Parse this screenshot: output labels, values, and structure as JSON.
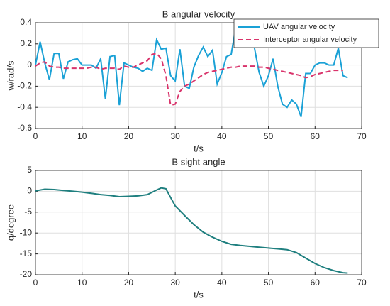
{
  "chart_data": [
    {
      "type": "line",
      "title": "B angular velocity",
      "x_label": "t/s",
      "y_label": "w/rad/s",
      "x": [
        0,
        1,
        2,
        3,
        4,
        5,
        6,
        7,
        8,
        9,
        10,
        11,
        12,
        13,
        14,
        15,
        16,
        17,
        18,
        19,
        20,
        21,
        22,
        23,
        24,
        25,
        26,
        27,
        28,
        29,
        30,
        31,
        32,
        33,
        34,
        35,
        36,
        37,
        38,
        39,
        40,
        41,
        42,
        43,
        44,
        45,
        46,
        47,
        48,
        49,
        50,
        51,
        52,
        53,
        54,
        55,
        56,
        57,
        58,
        59,
        60,
        61,
        62,
        63,
        64,
        65,
        66,
        67
      ],
      "series": [
        {
          "name": "UAV angular velocity",
          "color": "#1aa1d6",
          "dash": false,
          "values": [
            0.0,
            0.22,
            0.02,
            -0.14,
            0.11,
            0.11,
            -0.13,
            0.03,
            0.05,
            0.06,
            0.0,
            0.0,
            0.0,
            -0.03,
            0.06,
            -0.32,
            0.08,
            0.09,
            -0.38,
            0.02,
            0.0,
            -0.02,
            -0.03,
            -0.06,
            -0.03,
            -0.05,
            0.24,
            0.15,
            0.16,
            -0.1,
            -0.15,
            0.15,
            -0.2,
            -0.22,
            -0.02,
            0.09,
            0.17,
            0.08,
            0.14,
            -0.18,
            -0.07,
            0.08,
            0.1,
            0.36,
            0.29,
            0.28,
            0.22,
            0.16,
            -0.07,
            -0.2,
            -0.1,
            0.06,
            -0.2,
            -0.37,
            -0.4,
            -0.33,
            -0.37,
            -0.49,
            -0.08,
            -0.08,
            0.0,
            0.02,
            0.02,
            0.0,
            0.0,
            0.16,
            -0.1,
            -0.12
          ]
        },
        {
          "name": "Interceptor angular velocity",
          "color": "#d9336b",
          "dash": true,
          "values": [
            -0.01,
            0.02,
            0.03,
            -0.01,
            -0.02,
            -0.02,
            -0.03,
            -0.03,
            -0.03,
            -0.03,
            -0.03,
            -0.03,
            -0.02,
            -0.02,
            -0.04,
            -0.03,
            -0.03,
            -0.03,
            -0.04,
            -0.01,
            -0.02,
            -0.02,
            0.0,
            0.02,
            0.04,
            0.1,
            0.11,
            0.06,
            -0.1,
            -0.38,
            -0.37,
            -0.25,
            -0.2,
            -0.18,
            -0.15,
            -0.12,
            -0.09,
            -0.07,
            -0.06,
            -0.05,
            -0.04,
            -0.03,
            -0.02,
            -0.02,
            -0.01,
            -0.01,
            -0.01,
            -0.01,
            -0.02,
            -0.02,
            -0.03,
            -0.04,
            -0.05,
            -0.06,
            -0.07,
            -0.08,
            -0.09,
            -0.1,
            -0.12,
            -0.11,
            -0.09,
            -0.08,
            -0.07,
            -0.06,
            -0.05,
            -0.05,
            -0.05,
            null
          ]
        }
      ],
      "xlim": [
        0,
        70
      ],
      "xticks": [
        0,
        10,
        20,
        30,
        40,
        50,
        60,
        70
      ],
      "ylim": [
        -0.6,
        0.4
      ],
      "yticks": [
        -0.6,
        -0.4,
        -0.2,
        0,
        0.2,
        0.4
      ],
      "grid": true,
      "legend": "top-right"
    },
    {
      "type": "line",
      "title": "B sight angle",
      "x_label": "t/s",
      "y_label": "q/degree",
      "x": [
        0,
        2,
        4,
        6,
        8,
        10,
        12,
        14,
        16,
        18,
        20,
        22,
        24,
        26,
        27,
        28,
        29,
        30,
        32,
        34,
        36,
        38,
        40,
        42,
        44,
        46,
        48,
        50,
        52,
        54,
        56,
        58,
        60,
        62,
        64,
        66,
        67
      ],
      "series": [
        {
          "name": null,
          "color": "#1f7f7f",
          "dash": false,
          "values": [
            0.1,
            0.5,
            0.4,
            0.2,
            0.0,
            -0.2,
            -0.5,
            -0.8,
            -1.0,
            -1.3,
            -1.2,
            -1.1,
            -0.8,
            0.3,
            0.8,
            0.6,
            -1.5,
            -3.5,
            -5.8,
            -8.0,
            -9.8,
            -11.0,
            -12.0,
            -12.7,
            -13.0,
            -13.2,
            -13.4,
            -13.6,
            -13.8,
            -14.0,
            -14.7,
            -16.0,
            -17.3,
            -18.3,
            -19.0,
            -19.5,
            -19.6
          ]
        }
      ],
      "xlim": [
        0,
        70
      ],
      "xticks": [
        0,
        10,
        20,
        30,
        40,
        50,
        60,
        70
      ],
      "ylim": [
        -20,
        5
      ],
      "yticks": [
        -20,
        -15,
        -10,
        -5,
        0,
        5
      ],
      "grid": true
    }
  ]
}
